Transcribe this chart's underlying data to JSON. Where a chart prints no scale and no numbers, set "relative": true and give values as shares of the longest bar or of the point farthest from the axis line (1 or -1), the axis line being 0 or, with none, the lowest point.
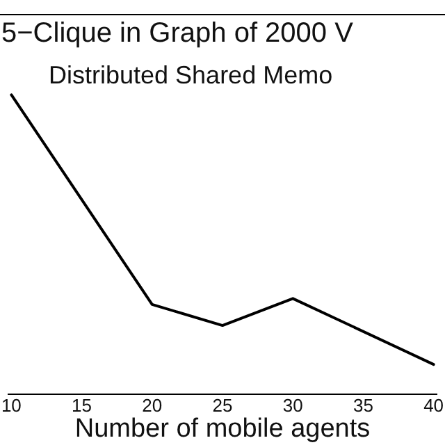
{
  "chart_data": {
    "type": "line",
    "relative": true,
    "title": "5−Clique in Graph of 2000 V",
    "subtitle": "Distributed Shared Memo",
    "xlabel": "Number of mobile agents",
    "x": [
      10,
      20,
      25,
      30,
      40
    ],
    "series": [
      {
        "color": "#000000",
        "values": [
          1,
          0.3,
          0.23,
          0.32,
          0.1
        ]
      }
    ],
    "xlim": [
      9.8,
      40.2
    ],
    "xticks": [
      10,
      15,
      20,
      25,
      30,
      35,
      40
    ],
    "grid": false,
    "legend": false,
    "tick_labels": "x",
    "marker": "none",
    "line_style": "solid"
  }
}
